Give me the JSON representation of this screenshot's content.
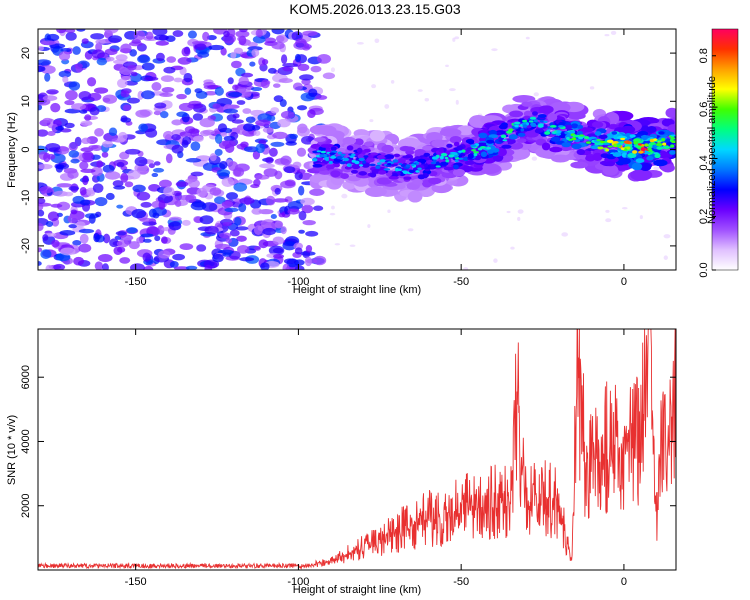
{
  "title": "KOM5.2026.013.23.15.G03",
  "chart_data": [
    {
      "type": "heatmap",
      "xlabel": "Height of straight line (km)",
      "ylabel": "Frequency (Hz)",
      "xlim": [
        -180,
        16
      ],
      "ylim": [
        -25,
        25
      ],
      "xticks": [
        -150,
        -100,
        -50,
        0
      ],
      "yticks": [
        -20,
        -10,
        0,
        10,
        20
      ],
      "colorbar": {
        "label": "Normalized spectral amplitude",
        "range": [
          0,
          0.9
        ],
        "ticks": [
          0,
          0.2,
          0.4,
          0.6,
          0.8
        ],
        "colors": [
          "#ffffff",
          "#e0c0ff",
          "#a050ff",
          "#6a00ff",
          "#0000ff",
          "#0078ff",
          "#00d8ff",
          "#00ff80",
          "#40ff00",
          "#ffff00",
          "#ffa000",
          "#ff3000",
          "#ff0060"
        ]
      },
      "noise_region_x": [
        -180,
        -90
      ],
      "signal_ridge": {
        "x": [
          -95,
          -85,
          -75,
          -65,
          -55,
          -45,
          -38,
          -32,
          -28,
          -22,
          -15,
          -5,
          0,
          5,
          10,
          16
        ],
        "y": [
          -1,
          -2,
          -3,
          -4,
          -2,
          0,
          2,
          5,
          6,
          4,
          3,
          1,
          1,
          0,
          1,
          2
        ],
        "amplitude": [
          0.45,
          0.42,
          0.4,
          0.42,
          0.45,
          0.55,
          0.55,
          0.5,
          0.48,
          0.5,
          0.55,
          0.6,
          0.75,
          0.85,
          0.7,
          0.6
        ]
      }
    },
    {
      "type": "line",
      "xlabel": "Height of straight line (km)",
      "ylabel": "SNR (10 * v/v)",
      "xlim": [
        -180,
        16
      ],
      "ylim": [
        0,
        7500
      ],
      "xticks": [
        -150,
        -100,
        -50,
        0
      ],
      "yticks": [
        2000,
        4000,
        6000
      ],
      "series": [
        {
          "color": "#e83030",
          "x": [
            -180,
            -150,
            -120,
            -100,
            -90,
            -85,
            -80,
            -75,
            -70,
            -65,
            -60,
            -55,
            -50,
            -45,
            -40,
            -35,
            -33,
            -30,
            -25,
            -20,
            -16,
            -14,
            -12,
            -10,
            -5,
            0,
            5,
            8,
            10,
            12,
            14,
            16
          ],
          "y": [
            80,
            100,
            90,
            120,
            250,
            500,
            700,
            900,
            1200,
            1400,
            1600,
            1700,
            1900,
            2000,
            2100,
            2100,
            6000,
            2200,
            2300,
            2000,
            200,
            7000,
            3200,
            3400,
            3800,
            3900,
            4000,
            7400,
            1800,
            5500,
            4200,
            6000
          ]
        }
      ]
    }
  ]
}
